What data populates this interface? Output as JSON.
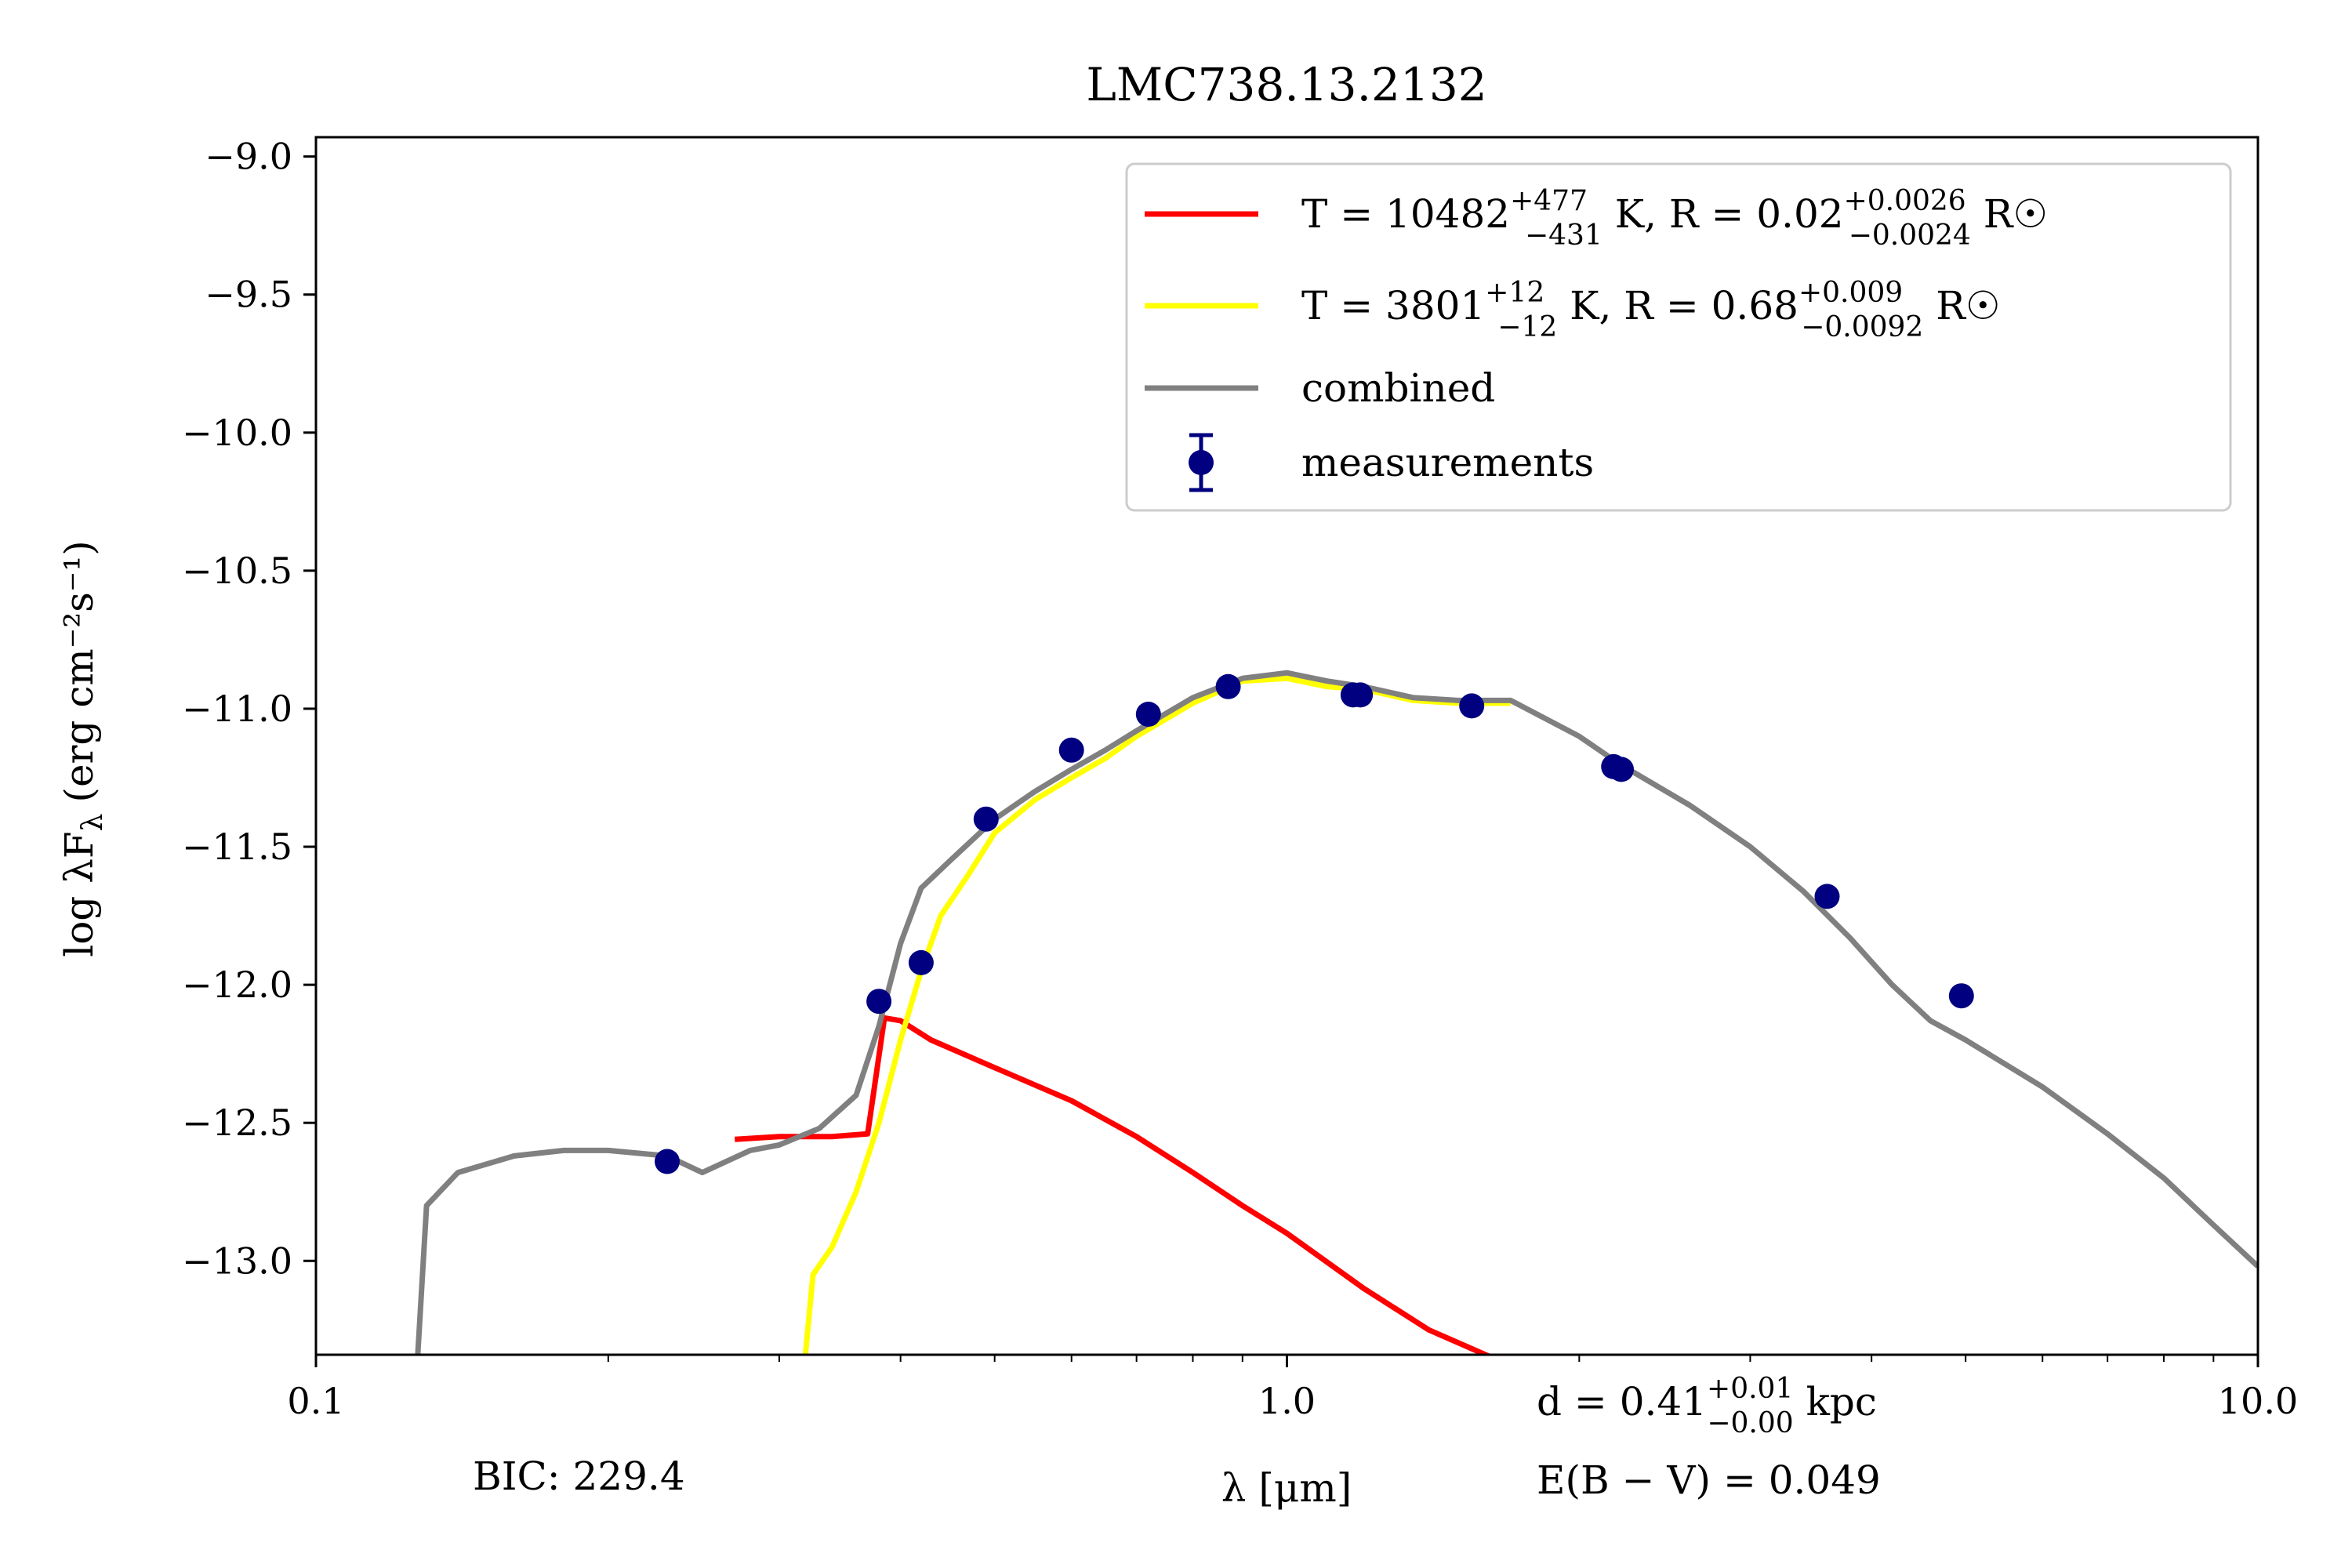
{
  "chart_data": {
    "type": "line",
    "title": "LMC738.13.2132",
    "xlabel": "λ [μm]",
    "ylabel": "log λF",
    "ylabel_sub": "λ",
    "ylabel_units": "(erg cm⁻²s⁻¹)",
    "xscale": "log",
    "xlim": [
      0.1,
      10.0
    ],
    "ylim": [
      -13.34,
      -8.93
    ],
    "x_ticks": [
      0.1,
      1.0,
      10.0
    ],
    "x_tick_labels": [
      "0.1",
      "1.0",
      "10.0"
    ],
    "y_ticks": [
      -9.0,
      -9.5,
      -10.0,
      -10.5,
      -11.0,
      -11.5,
      -12.0,
      -12.5,
      -13.0
    ],
    "y_tick_labels": [
      "−9.0",
      "−9.5",
      "−10.0",
      "−10.5",
      "−11.0",
      "−11.5",
      "−12.0",
      "−12.5",
      "−13.0"
    ],
    "grid": false,
    "legend_placement": "top-right",
    "series": [
      {
        "name": "T = 10482 K, R = 0.02 R☉",
        "legend_parts": {
          "prefix": "T = 10482",
          "sup": "+477",
          "sub": "−431",
          "mid": " K, R = 0.02",
          "sup2": "+0.0026",
          "sub2": "−0.0024",
          "suffix": " R☉"
        },
        "color": "#ff0000",
        "points": [
          [
            0.27,
            -12.56
          ],
          [
            0.3,
            -12.55
          ],
          [
            0.34,
            -12.55
          ],
          [
            0.37,
            -12.54
          ],
          [
            0.385,
            -12.12
          ],
          [
            0.4,
            -12.13
          ],
          [
            0.43,
            -12.2
          ],
          [
            0.5,
            -12.3
          ],
          [
            0.6,
            -12.42
          ],
          [
            0.7,
            -12.55
          ],
          [
            0.8,
            -12.68
          ],
          [
            0.9,
            -12.8
          ],
          [
            1.0,
            -12.9
          ],
          [
            1.2,
            -13.1
          ],
          [
            1.4,
            -13.25
          ],
          [
            1.65,
            -13.36
          ]
        ]
      },
      {
        "name": "T = 3801 K, R = 0.68 R☉",
        "legend_parts": {
          "prefix": "T = 3801",
          "sup": "+12",
          "sub": "−12",
          "mid": " K, R = 0.68",
          "sup2": "+0.009",
          "sub2": "−0.0092",
          "suffix": " R☉"
        },
        "color": "#ffff00",
        "points": [
          [
            0.318,
            -13.4
          ],
          [
            0.325,
            -13.05
          ],
          [
            0.34,
            -12.95
          ],
          [
            0.36,
            -12.75
          ],
          [
            0.38,
            -12.5
          ],
          [
            0.4,
            -12.2
          ],
          [
            0.42,
            -11.95
          ],
          [
            0.44,
            -11.75
          ],
          [
            0.47,
            -11.6
          ],
          [
            0.5,
            -11.45
          ],
          [
            0.55,
            -11.33
          ],
          [
            0.6,
            -11.25
          ],
          [
            0.65,
            -11.18
          ],
          [
            0.7,
            -11.1
          ],
          [
            0.8,
            -10.98
          ],
          [
            0.9,
            -10.9
          ],
          [
            1.0,
            -10.89
          ],
          [
            1.1,
            -10.92
          ],
          [
            1.2,
            -10.93
          ],
          [
            1.35,
            -10.97
          ],
          [
            1.5,
            -10.98
          ],
          [
            1.7,
            -10.98
          ]
        ]
      },
      {
        "name": "combined",
        "color": "#808080",
        "points": [
          [
            0.127,
            -13.4
          ],
          [
            0.13,
            -12.8
          ],
          [
            0.14,
            -12.68
          ],
          [
            0.16,
            -12.62
          ],
          [
            0.18,
            -12.6
          ],
          [
            0.2,
            -12.6
          ],
          [
            0.23,
            -12.62
          ],
          [
            0.25,
            -12.68
          ],
          [
            0.28,
            -12.6
          ],
          [
            0.3,
            -12.58
          ],
          [
            0.33,
            -12.52
          ],
          [
            0.36,
            -12.4
          ],
          [
            0.38,
            -12.15
          ],
          [
            0.4,
            -11.85
          ],
          [
            0.42,
            -11.65
          ],
          [
            0.45,
            -11.55
          ],
          [
            0.5,
            -11.4
          ],
          [
            0.55,
            -11.3
          ],
          [
            0.6,
            -11.22
          ],
          [
            0.65,
            -11.15
          ],
          [
            0.7,
            -11.08
          ],
          [
            0.8,
            -10.96
          ],
          [
            0.9,
            -10.89
          ],
          [
            1.0,
            -10.87
          ],
          [
            1.1,
            -10.9
          ],
          [
            1.2,
            -10.92
          ],
          [
            1.35,
            -10.96
          ],
          [
            1.5,
            -10.97
          ],
          [
            1.7,
            -10.97
          ],
          [
            2.0,
            -11.1
          ],
          [
            2.2,
            -11.2
          ],
          [
            2.6,
            -11.35
          ],
          [
            3.0,
            -11.5
          ],
          [
            3.4,
            -11.66
          ],
          [
            3.8,
            -11.83
          ],
          [
            4.2,
            -12.0
          ],
          [
            4.6,
            -12.13
          ],
          [
            5.0,
            -12.2
          ],
          [
            6.0,
            -12.37
          ],
          [
            7.0,
            -12.54
          ],
          [
            8.0,
            -12.7
          ],
          [
            9.0,
            -12.87
          ],
          [
            10.0,
            -13.02
          ]
        ]
      }
    ],
    "measurements": {
      "name": "measurements",
      "color": "#000080",
      "points": [
        [
          0.23,
          -12.64
        ],
        [
          0.38,
          -12.06
        ],
        [
          0.42,
          -11.92
        ],
        [
          0.49,
          -11.4
        ],
        [
          0.6,
          -11.15
        ],
        [
          0.72,
          -11.02
        ],
        [
          0.87,
          -10.92
        ],
        [
          1.17,
          -10.95
        ],
        [
          1.19,
          -10.95
        ],
        [
          1.55,
          -10.99
        ],
        [
          2.17,
          -11.21
        ],
        [
          2.21,
          -11.22
        ],
        [
          3.6,
          -11.68
        ],
        [
          4.95,
          -12.04
        ]
      ]
    },
    "annotations": {
      "bic": "BIC: 229.4",
      "distance": {
        "prefix": "d = 0.41",
        "sup": "+0.01",
        "sub": "−0.00",
        "suffix": " kpc"
      },
      "ebv": "E(B − V) = 0.049"
    }
  }
}
